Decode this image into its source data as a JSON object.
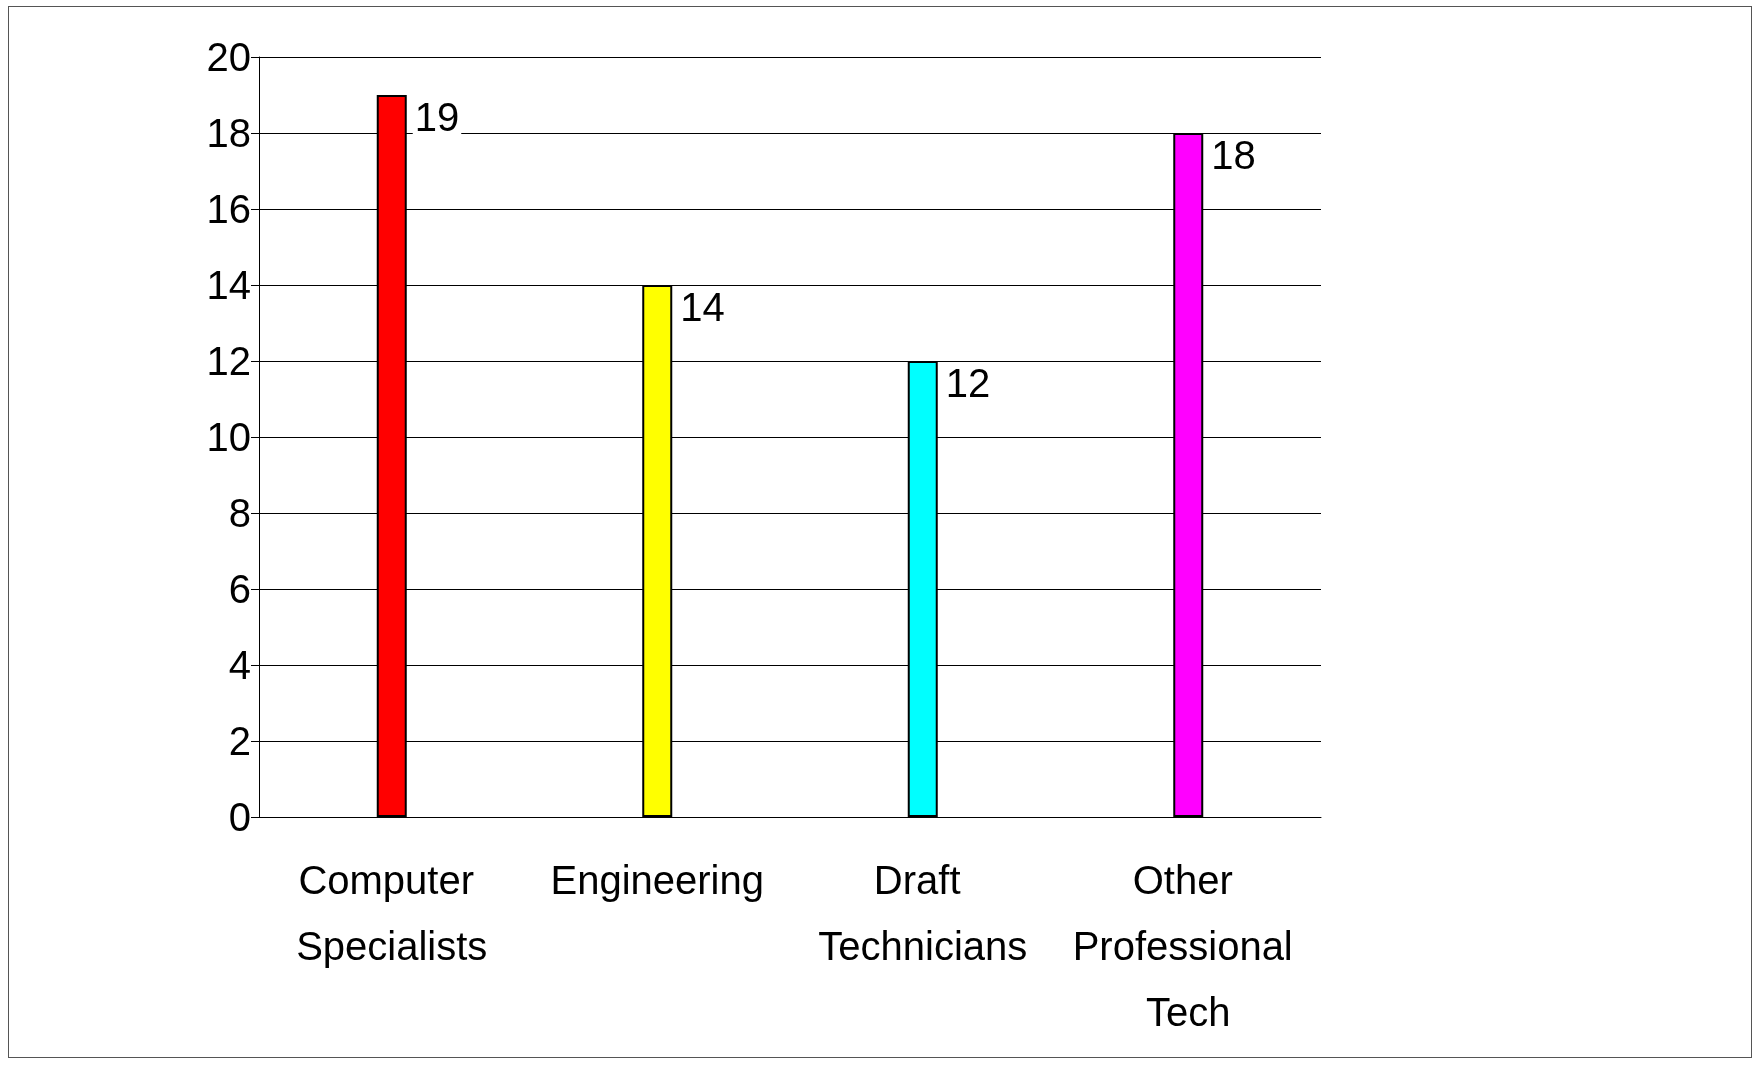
{
  "chart_data": {
    "type": "bar",
    "categories": [
      "Computer Specialists",
      "Engineering",
      "Draft Technicians",
      "Other Professional Tech"
    ],
    "values": [
      19,
      14,
      12,
      18
    ],
    "colors": [
      "#ff0000",
      "#ffff00",
      "#00ffff",
      "#ff00ff"
    ],
    "ylim": [
      0,
      20
    ],
    "yticks": [
      0,
      2,
      4,
      6,
      8,
      10,
      12,
      14,
      16,
      18,
      20
    ],
    "grid": "y",
    "data_labels": true
  }
}
